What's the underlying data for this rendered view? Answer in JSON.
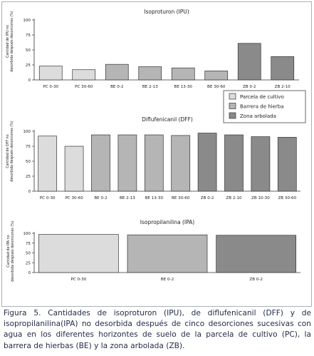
{
  "chart_data": [
    {
      "type": "bar",
      "title": "Isoproturon (IPU)",
      "ylabel": "Cantidad de IPU no desorbida después desorciones (%)",
      "ylim": [
        0,
        100
      ],
      "yticks": [
        0,
        25,
        50,
        75,
        100
      ],
      "categories": [
        "PC 0-30",
        "PC 30-60",
        "BE 0-2",
        "BE 2-13",
        "BE 13-30",
        "BE 30-60",
        "ZB 0-2",
        "ZB 2-10"
      ],
      "values": [
        23,
        17,
        26,
        22,
        20,
        15,
        61,
        39
      ],
      "groups": [
        "PC",
        "PC",
        "BE",
        "BE",
        "BE",
        "BE",
        "ZB",
        "ZB"
      ],
      "grid": false
    },
    {
      "type": "bar",
      "title": "Diflufenicanil (DFF)",
      "ylabel": "Cantidad de DFF no desorbida después desorciones (%)",
      "ylim": [
        0,
        100
      ],
      "yticks": [
        0,
        25,
        50,
        75,
        100
      ],
      "categories": [
        "PC 0-30",
        "PC 30-60",
        "BE 0-2",
        "BE 2-13",
        "BE 13-30",
        "BE 30-60",
        "ZB 0-2",
        "ZB 2-10",
        "ZB 10-30",
        "ZB 30-60"
      ],
      "values": [
        92,
        75,
        94,
        94,
        94,
        93,
        97,
        94,
        91,
        90
      ],
      "groups": [
        "PC",
        "PC",
        "BE",
        "BE",
        "BE",
        "BE",
        "ZB",
        "ZB",
        "ZB",
        "ZB"
      ],
      "grid": false
    },
    {
      "type": "bar",
      "title": "Isopropilanilina (IPA)",
      "ylabel": "Cantidad de IPA no desorbida después desorciones (%)",
      "ylim": [
        0,
        100
      ],
      "yticks": [
        0,
        25,
        50,
        75,
        100
      ],
      "categories": [
        "PC 0-30",
        "BE 0-2",
        "ZB 0-2"
      ],
      "values": [
        97,
        96,
        95
      ],
      "groups": [
        "PC",
        "BE",
        "ZB"
      ],
      "grid": false
    }
  ],
  "legend": {
    "placement": "right",
    "items": [
      {
        "key": "PC",
        "label": "Parcela de cultivo",
        "color": "#dcdcdc"
      },
      {
        "key": "BE",
        "label": "Barrera de hierba",
        "color": "#b5b5b5"
      },
      {
        "key": "ZB",
        "label": "Zona arbolada",
        "color": "#8a8a8a"
      }
    ]
  },
  "caption": "Figura 5. Cantidades de isoproturon (IPU), de diflufenicanil (DFF) y de isopropilanilina(IPA) no desorbida después de cinco desorciones sucesivas con agua en los diferentes horizontes de suelo de la parcela de cultivo (PC), la barrera de hierbas (BE) y la zona arbolada (ZB)."
}
